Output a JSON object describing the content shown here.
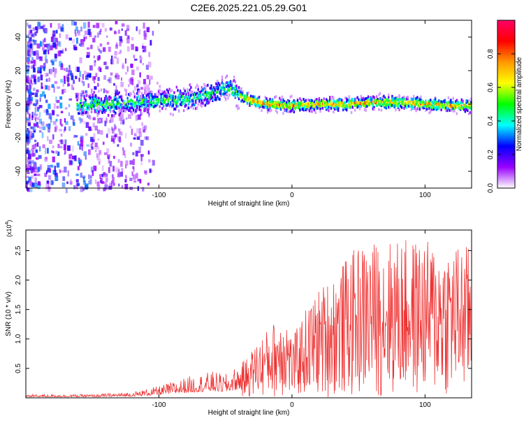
{
  "title": "C2E6.2025.221.05.29.G01",
  "chart_data": [
    {
      "type": "heatmap",
      "xlabel": "Height of straight line (km)",
      "ylabel": "Frequency (Hz)",
      "xlim": [
        -200,
        135
      ],
      "ylim": [
        -50,
        50
      ],
      "x_ticks": [
        -100,
        0,
        100
      ],
      "y_ticks": [
        -40,
        -20,
        0,
        20,
        40
      ],
      "colorbar": {
        "label": "Normalized spectral amplitude",
        "range": [
          0,
          1
        ],
        "ticks": [
          "0.0",
          "0.2",
          "0.4",
          "0.6",
          "0.8"
        ],
        "colors": [
          "#ffffff",
          "#9900ff",
          "#0000ff",
          "#00ffff",
          "#00ff00",
          "#ffff00",
          "#ff9900",
          "#ff0000",
          "#ff0066"
        ]
      },
      "ridge": {
        "x": [
          -160,
          -140,
          -120,
          -100,
          -80,
          -60,
          -50,
          -45,
          -40,
          -30,
          -20,
          0,
          20,
          40,
          60,
          80,
          100,
          120,
          135
        ],
        "y": [
          0,
          0,
          1,
          2,
          3,
          6,
          10,
          9,
          5,
          2,
          0,
          -1,
          0,
          0,
          1,
          1,
          0,
          -1,
          -1
        ]
      }
    },
    {
      "type": "line",
      "xlabel": "Height of straight line (km)",
      "ylabel": "SNR (10 * v/v)",
      "y_multiplier": "(x10",
      "y_multiplier_exp": "4",
      "y_multiplier_close": ")",
      "xlim": [
        -200,
        135
      ],
      "ylim": [
        0,
        2.85
      ],
      "x_ticks": [
        -100,
        0,
        100
      ],
      "y_ticks": [
        "0.5",
        "1.0",
        "1.5",
        "2.0",
        "2.5"
      ],
      "color": "#ee3333",
      "envelope": {
        "x": [
          -200,
          -150,
          -120,
          -100,
          -80,
          -60,
          -50,
          -35,
          -25,
          -15,
          -5,
          0,
          10,
          20,
          30,
          50,
          70,
          90,
          110,
          135
        ],
        "y": [
          0.06,
          0.06,
          0.1,
          0.2,
          0.35,
          0.45,
          0.4,
          0.65,
          1.0,
          1.25,
          1.55,
          1.0,
          1.5,
          1.85,
          2.1,
          2.6,
          2.7,
          2.7,
          2.65,
          2.6
        ]
      }
    }
  ]
}
